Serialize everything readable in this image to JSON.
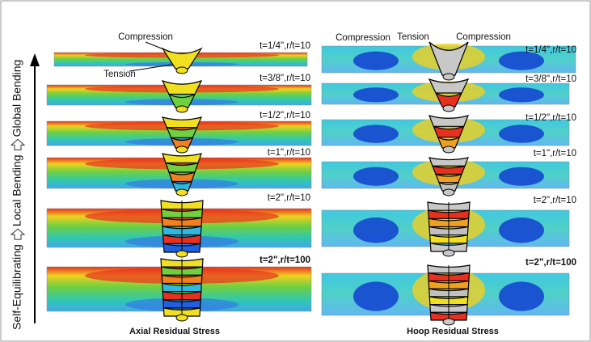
{
  "axis_label": {
    "parts": [
      "Self-Equilibrating",
      "Local Bending",
      "Global Bending"
    ]
  },
  "left": {
    "title": "Axial Residual Stress",
    "annotations": [
      "Compression",
      "Tension"
    ],
    "panels": [
      "t=1/4\",r/t=10",
      "t=3/8\",r/t=10",
      "t=1/2\",r/t=10",
      "t=1\",r/t=10",
      "t=2\",r/t=10",
      "t=2\",r/t=100"
    ]
  },
  "right": {
    "title": "Hoop Residual Stress",
    "annotations": [
      "Compression",
      "Tension",
      "Compression"
    ],
    "panels": [
      "t=1/4\",r/t=10",
      "t=3/8\",r/t=10",
      "t=1/2\",r/t=10",
      "t=1\",r/t=10",
      "t=2\",r/t=10",
      "t=2\",r/t=100"
    ]
  }
}
